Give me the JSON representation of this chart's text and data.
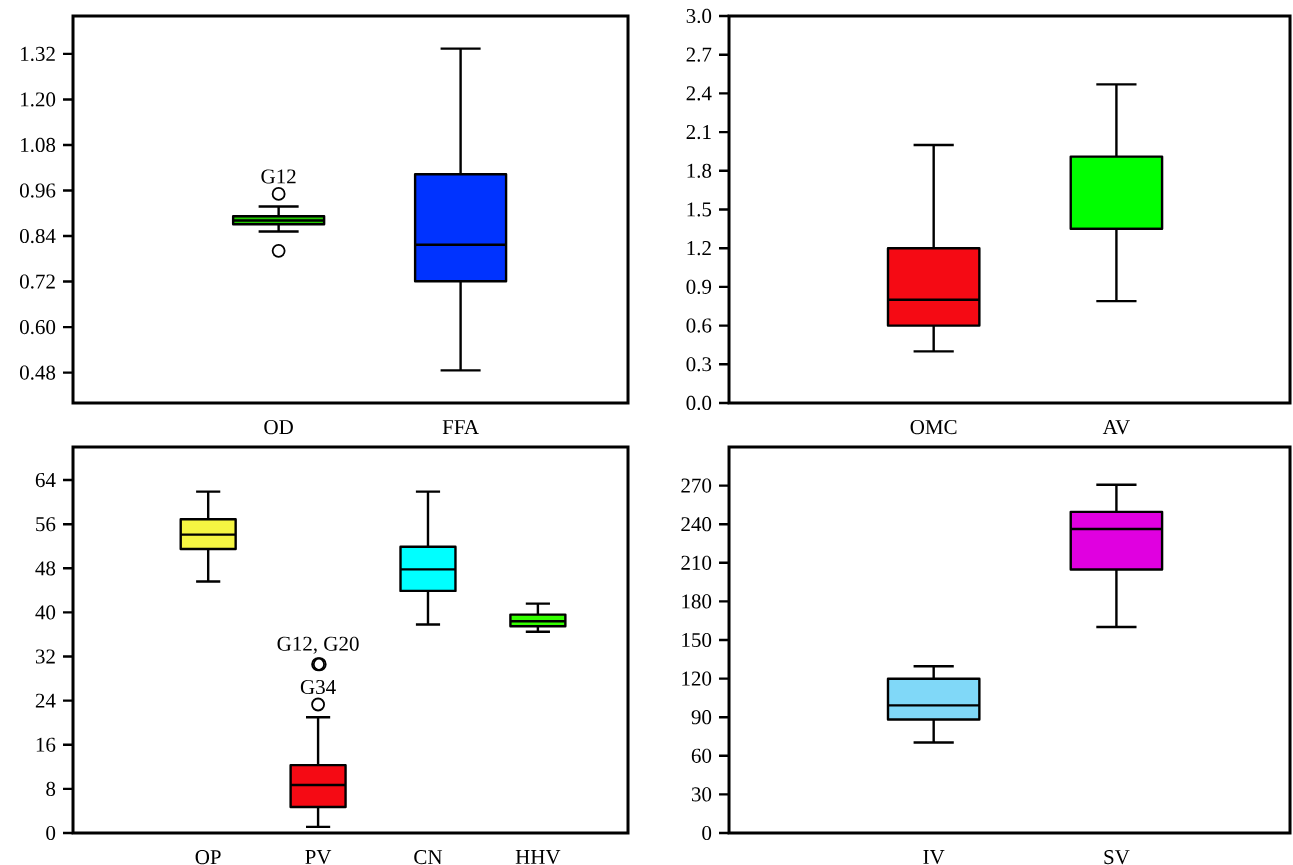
{
  "chart_data": [
    {
      "type": "box",
      "categories": [
        "OD",
        "FFA"
      ],
      "colors": [
        "#22cc00",
        "#0033ff"
      ],
      "boxes": [
        {
          "low": 0.852,
          "q1": 0.871,
          "median": 0.881,
          "q3": 0.892,
          "high": 0.918,
          "outliers": [
            0.951,
            0.801
          ]
        },
        {
          "low": 0.486,
          "q1": 0.721,
          "median": 0.817,
          "q3": 1.003,
          "high": 1.334
        }
      ],
      "ylim": [
        0.4,
        1.42
      ],
      "yticks": [
        {
          "value": 0.48,
          "label": "0.48"
        },
        {
          "value": 0.6,
          "label": "0.60"
        },
        {
          "value": 0.72,
          "label": "0.72"
        },
        {
          "value": 0.84,
          "label": "0.84"
        },
        {
          "value": 0.96,
          "label": "0.96"
        },
        {
          "value": 1.08,
          "label": "1.08"
        },
        {
          "value": 1.2,
          "label": "1.20"
        },
        {
          "value": 1.32,
          "label": "1.32"
        }
      ],
      "annotations": [
        "G12"
      ]
    },
    {
      "type": "box",
      "categories": [
        "OMC",
        "AV"
      ],
      "colors": [
        "#f50a14",
        "#00ff00"
      ],
      "boxes": [
        {
          "low": 0.4,
          "q1": 0.6,
          "median": 0.8,
          "q3": 1.2,
          "high": 2.0
        },
        {
          "low": 0.79,
          "q1": 1.35,
          "median": 1.35,
          "q3": 1.91,
          "high": 2.47
        }
      ],
      "ylim": [
        0,
        3.0
      ],
      "yticks": [
        {
          "value": 0,
          "label": "0.0"
        },
        0.3,
        0.6,
        0.9,
        1.2,
        1.5,
        1.8,
        2.1,
        2.4,
        2.7,
        {
          "value": 3,
          "label": "3.0"
        }
      ]
    },
    {
      "type": "box",
      "categories": [
        "OP",
        "PV",
        "CN",
        "HHV"
      ],
      "colors": [
        "#f5f542",
        "#f50a14",
        "#00ffff",
        "#33ff00"
      ],
      "boxes": [
        {
          "low": 45.6,
          "q1": 51.5,
          "median": 54.1,
          "q3": 56.9,
          "high": 61.9
        },
        {
          "low": 1.1,
          "q1": 4.7,
          "median": 8.7,
          "q3": 12.3,
          "high": 21.0,
          "outliers": [
            30.6,
            30.6,
            23.3
          ]
        },
        {
          "low": 37.8,
          "q1": 43.9,
          "median": 47.8,
          "q3": 51.9,
          "high": 61.9
        },
        {
          "low": 36.5,
          "q1": 37.5,
          "median": 38.4,
          "q3": 39.6,
          "high": 41.6
        }
      ],
      "ylim": [
        0,
        70
      ],
      "yticks": [
        0,
        8,
        16,
        24,
        32,
        40,
        48,
        56,
        64
      ],
      "annotations": [
        "G12, G20",
        "G34"
      ]
    },
    {
      "type": "box",
      "categories": [
        "IV",
        "SV"
      ],
      "colors": [
        "#80d8f8",
        "#e000e0"
      ],
      "boxes": [
        {
          "low": 70.3,
          "q1": 88.2,
          "median": 99.2,
          "q3": 119.9,
          "high": 129.6
        },
        {
          "low": 160.1,
          "q1": 204.8,
          "median": 236.3,
          "q3": 249.6,
          "high": 270.6
        }
      ],
      "ylim": [
        0,
        300
      ],
      "yticks": [
        0,
        30,
        60,
        90,
        120,
        150,
        180,
        210,
        240,
        270
      ]
    }
  ]
}
